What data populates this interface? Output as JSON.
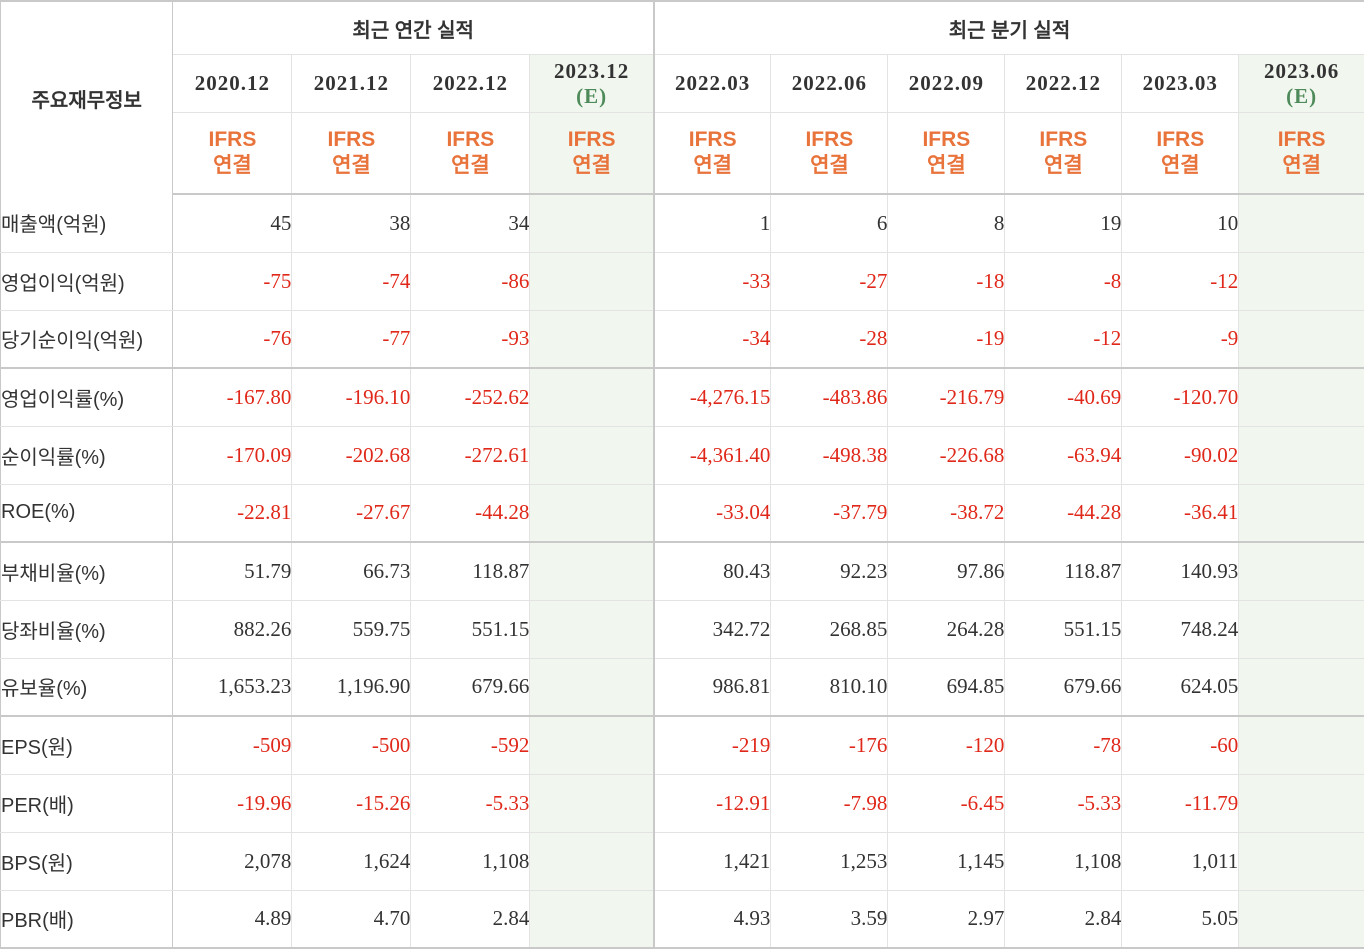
{
  "header": {
    "label": "주요재무정보",
    "annual_title": "최근 연간 실적",
    "quarterly_title": "최근 분기 실적",
    "annual_periods": [
      {
        "period": "2020.12",
        "estimate": ""
      },
      {
        "period": "2021.12",
        "estimate": ""
      },
      {
        "period": "2022.12",
        "estimate": ""
      },
      {
        "period": "2023.12",
        "estimate": "(E)"
      }
    ],
    "quarterly_periods": [
      {
        "period": "2022.03",
        "estimate": ""
      },
      {
        "period": "2022.06",
        "estimate": ""
      },
      {
        "period": "2022.09",
        "estimate": ""
      },
      {
        "period": "2022.12",
        "estimate": ""
      },
      {
        "period": "2023.03",
        "estimate": ""
      },
      {
        "period": "2023.06",
        "estimate": "(E)"
      }
    ],
    "basis_line1": "IFRS",
    "basis_line2": "연결"
  },
  "rows": [
    {
      "label": "매출액(억원)",
      "annual": [
        "45",
        "38",
        "34",
        ""
      ],
      "quarterly": [
        "1",
        "6",
        "8",
        "19",
        "10",
        ""
      ]
    },
    {
      "label": "영업이익(억원)",
      "annual": [
        "-75",
        "-74",
        "-86",
        ""
      ],
      "quarterly": [
        "-33",
        "-27",
        "-18",
        "-8",
        "-12",
        ""
      ]
    },
    {
      "label": "당기순이익(억원)",
      "annual": [
        "-76",
        "-77",
        "-93",
        ""
      ],
      "quarterly": [
        "-34",
        "-28",
        "-19",
        "-12",
        "-9",
        ""
      ]
    },
    {
      "label": "영업이익률(%)",
      "annual": [
        "-167.80",
        "-196.10",
        "-252.62",
        ""
      ],
      "quarterly": [
        "-4,276.15",
        "-483.86",
        "-216.79",
        "-40.69",
        "-120.70",
        ""
      ]
    },
    {
      "label": "순이익률(%)",
      "annual": [
        "-170.09",
        "-202.68",
        "-272.61",
        ""
      ],
      "quarterly": [
        "-4,361.40",
        "-498.38",
        "-226.68",
        "-63.94",
        "-90.02",
        ""
      ]
    },
    {
      "label": "ROE(%)",
      "annual": [
        "-22.81",
        "-27.67",
        "-44.28",
        ""
      ],
      "quarterly": [
        "-33.04",
        "-37.79",
        "-38.72",
        "-44.28",
        "-36.41",
        ""
      ]
    },
    {
      "label": "부채비율(%)",
      "annual": [
        "51.79",
        "66.73",
        "118.87",
        ""
      ],
      "quarterly": [
        "80.43",
        "92.23",
        "97.86",
        "118.87",
        "140.93",
        ""
      ]
    },
    {
      "label": "당좌비율(%)",
      "annual": [
        "882.26",
        "559.75",
        "551.15",
        ""
      ],
      "quarterly": [
        "342.72",
        "268.85",
        "264.28",
        "551.15",
        "748.24",
        ""
      ]
    },
    {
      "label": "유보율(%)",
      "annual": [
        "1,653.23",
        "1,196.90",
        "679.66",
        ""
      ],
      "quarterly": [
        "986.81",
        "810.10",
        "694.85",
        "679.66",
        "624.05",
        ""
      ]
    },
    {
      "label": "EPS(원)",
      "annual": [
        "-509",
        "-500",
        "-592",
        ""
      ],
      "quarterly": [
        "-219",
        "-176",
        "-120",
        "-78",
        "-60",
        ""
      ]
    },
    {
      "label": "PER(배)",
      "annual": [
        "-19.96",
        "-15.26",
        "-5.33",
        ""
      ],
      "quarterly": [
        "-12.91",
        "-7.98",
        "-6.45",
        "-5.33",
        "-11.79",
        ""
      ]
    },
    {
      "label": "BPS(원)",
      "annual": [
        "2,078",
        "1,624",
        "1,108",
        ""
      ],
      "quarterly": [
        "1,421",
        "1,253",
        "1,145",
        "1,108",
        "1,011",
        ""
      ]
    },
    {
      "label": "PBR(배)",
      "annual": [
        "4.89",
        "4.70",
        "2.84",
        ""
      ],
      "quarterly": [
        "4.93",
        "3.59",
        "2.97",
        "2.84",
        "5.05",
        ""
      ]
    }
  ],
  "colors": {
    "negative": "#e0281a",
    "positive": "#333333",
    "basis": "#e8733b",
    "estimate_text": "#4f8a5a",
    "estimate_bg": "#f1f7ef"
  }
}
